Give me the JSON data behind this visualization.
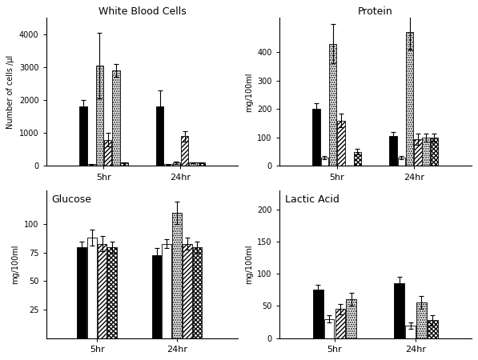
{
  "wbc": {
    "title": "White Blood Cells",
    "ylabel": "Number of cells /μl",
    "ylim": [
      0,
      4500
    ],
    "yticks": [
      0,
      1000,
      2000,
      3000,
      4000
    ],
    "bars_5hr": [
      1800,
      50,
      3050,
      800,
      2900,
      100
    ],
    "bars_24hr": [
      1800,
      50,
      100,
      900,
      100,
      100
    ],
    "err_5hr": [
      200,
      10,
      1000,
      200,
      200,
      20
    ],
    "err_24hr": [
      500,
      10,
      30,
      150,
      20,
      20
    ],
    "styles_5hr": [
      "black",
      "white",
      "dots",
      "diag",
      "dots",
      "cross"
    ],
    "styles_24hr": [
      "black",
      "white",
      "dots",
      "diag",
      "dots",
      "cross"
    ]
  },
  "protein": {
    "title": "Protein",
    "ylabel": "mg/100ml",
    "ylim": [
      0,
      520
    ],
    "yticks": [
      0,
      100,
      200,
      300,
      400
    ],
    "bars_5hr": [
      200,
      30,
      430,
      160,
      0,
      50
    ],
    "bars_24hr": [
      105,
      30,
      470,
      95,
      100,
      100
    ],
    "err_5hr": [
      20,
      5,
      70,
      25,
      0,
      10
    ],
    "err_24hr": [
      15,
      5,
      60,
      20,
      15,
      15
    ],
    "styles_5hr": [
      "black",
      "white",
      "dots",
      "diag",
      "dots",
      "cross"
    ],
    "styles_24hr": [
      "black",
      "white",
      "dots",
      "diag",
      "dots",
      "cross"
    ]
  },
  "glucose": {
    "title": "Glucose",
    "ylabel": "mg/100ml",
    "ylim": [
      0,
      130
    ],
    "yticks": [
      25,
      50,
      75,
      100
    ],
    "bars_5hr": [
      80,
      88,
      83,
      80
    ],
    "bars_24hr": [
      73,
      83,
      110,
      83,
      80
    ],
    "err_5hr": [
      5,
      7,
      7,
      5
    ],
    "err_24hr": [
      6,
      4,
      10,
      5,
      5
    ],
    "styles_5hr": [
      "black",
      "white",
      "diag",
      "cross"
    ],
    "styles_24hr": [
      "black",
      "white",
      "dots",
      "diag",
      "cross"
    ]
  },
  "lactic": {
    "title": "Lactic Acid",
    "ylabel": "mg/100ml",
    "ylim": [
      0,
      230
    ],
    "yticks": [
      0,
      50,
      100,
      150,
      200
    ],
    "bars_5hr": [
      75,
      30,
      45,
      60
    ],
    "bars_24hr": [
      85,
      20,
      55,
      28
    ],
    "err_5hr": [
      8,
      5,
      8,
      10
    ],
    "err_24hr": [
      10,
      5,
      10,
      8
    ],
    "styles_5hr": [
      "black",
      "white",
      "diag",
      "dots"
    ],
    "styles_24hr": [
      "black",
      "white",
      "dots",
      "cross"
    ]
  }
}
